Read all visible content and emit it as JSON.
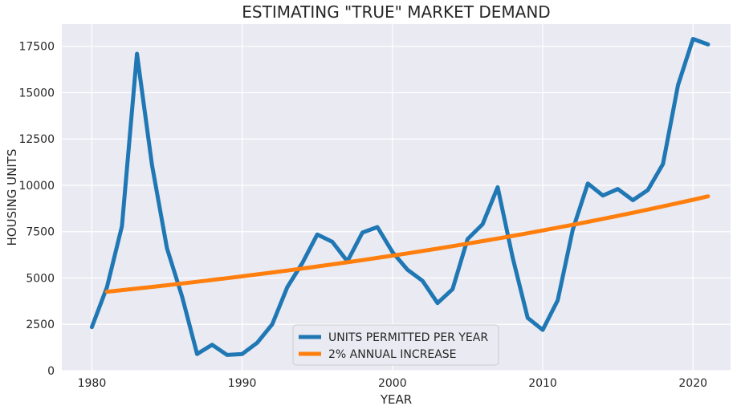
{
  "chart_data": {
    "type": "line",
    "title": "ESTIMATING \"TRUE\" MARKET DEMAND",
    "xlabel": "YEAR",
    "ylabel": "HOUSING UNITS",
    "xlim": [
      1978,
      2022.5
    ],
    "ylim": [
      0,
      18700
    ],
    "x_ticks": [
      1980,
      1990,
      2000,
      2010,
      2020
    ],
    "y_ticks": [
      0,
      2500,
      5000,
      7500,
      10000,
      12500,
      15000,
      17500
    ],
    "grid": true,
    "legend_position": "bottom-center",
    "background": "#eaeaf2",
    "series": [
      {
        "name": "UNITS PERMITTED PER YEAR",
        "color": "#1f77b4",
        "x": [
          1980,
          1981,
          1982,
          1983,
          1984,
          1985,
          1986,
          1987,
          1988,
          1989,
          1990,
          1991,
          1992,
          1993,
          1994,
          1995,
          1996,
          1997,
          1998,
          1999,
          2000,
          2001,
          2002,
          2003,
          2004,
          2005,
          2006,
          2007,
          2008,
          2009,
          2010,
          2011,
          2012,
          2013,
          2014,
          2015,
          2016,
          2017,
          2018,
          2019,
          2020,
          2021
        ],
        "values": [
          2350,
          4500,
          7800,
          17100,
          11100,
          6600,
          4000,
          900,
          1400,
          850,
          900,
          1500,
          2500,
          4500,
          5800,
          7350,
          6950,
          5900,
          7450,
          7750,
          6400,
          5450,
          4850,
          3650,
          4400,
          7100,
          7900,
          9900,
          6100,
          2850,
          2200,
          3800,
          7600,
          10100,
          9450,
          9800,
          9200,
          9750,
          11150,
          15400,
          17900,
          17600
        ]
      },
      {
        "name": "2% ANNUAL INCREASE",
        "color": "#ff7f0e",
        "x": [
          1981,
          1982,
          1983,
          1984,
          1985,
          1986,
          1987,
          1988,
          1989,
          1990,
          1991,
          1992,
          1993,
          1994,
          1995,
          1996,
          1997,
          1998,
          1999,
          2000,
          2001,
          2002,
          2003,
          2004,
          2005,
          2006,
          2007,
          2008,
          2009,
          2010,
          2011,
          2012,
          2013,
          2014,
          2015,
          2016,
          2017,
          2018,
          2019,
          2020,
          2021
        ],
        "values": [
          4260,
          4345,
          4432,
          4521,
          4611,
          4704,
          4798,
          4894,
          4991,
          5091,
          5193,
          5297,
          5403,
          5511,
          5621,
          5734,
          5848,
          5965,
          6085,
          6206,
          6330,
          6457,
          6586,
          6718,
          6852,
          6989,
          7129,
          7272,
          7417,
          7565,
          7717,
          7871,
          8028,
          8189,
          8353,
          8520,
          8690,
          8864,
          9041,
          9222,
          9407
        ]
      }
    ]
  }
}
